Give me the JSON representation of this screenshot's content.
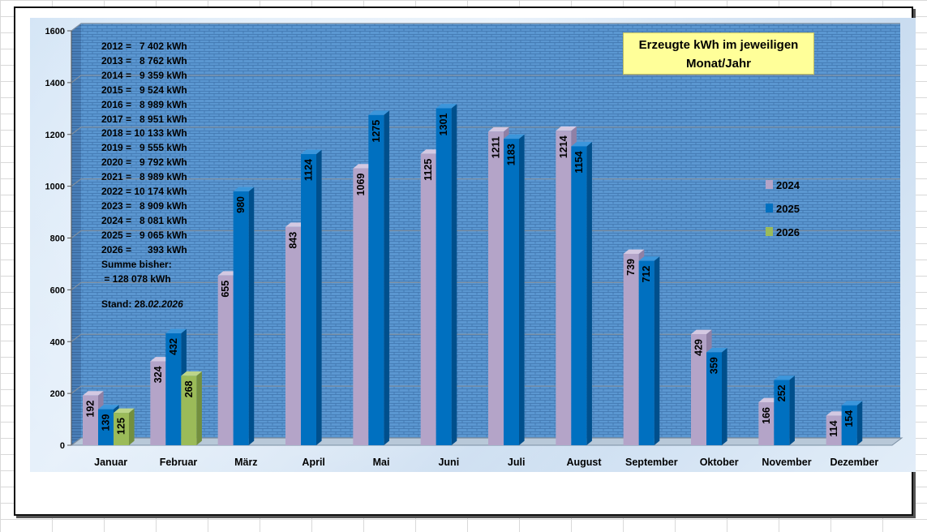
{
  "chart_data": {
    "type": "bar",
    "title_line1": "Erzeugte kWh im jeweiligen",
    "title_line2": "Monat/Jahr",
    "categories": [
      "Januar",
      "Februar",
      "März",
      "April",
      "Mai",
      "Juni",
      "Juli",
      "August",
      "September",
      "Oktober",
      "November",
      "Dezember"
    ],
    "series": [
      {
        "name": "2024",
        "color": "#b4a4c8",
        "side": "#8f80a5",
        "top": "#d4c9e2",
        "values": [
          192,
          324,
          655,
          843,
          1069,
          1125,
          1211,
          1214,
          739,
          429,
          166,
          114
        ],
        "labels": [
          "192",
          "324",
          "655",
          "843",
          "1069",
          "1125",
          "1211",
          "1214",
          "739",
          "429",
          "166",
          "114"
        ]
      },
      {
        "name": "2025",
        "color": "#0070c0",
        "side": "#004f8c",
        "top": "#3c96db",
        "values": [
          139,
          432,
          980,
          1124,
          1275,
          1301,
          1183,
          1154,
          712,
          359,
          252,
          154
        ],
        "labels": [
          "139",
          "432",
          "980",
          "1124",
          "1275",
          "1301",
          "1183",
          "1154",
          "712",
          "359",
          "252",
          "154"
        ]
      },
      {
        "name": "2026",
        "color": "#9bbb59",
        "side": "#738f3e",
        "top": "#bcd58a",
        "values": [
          125,
          268,
          null,
          null,
          null,
          null,
          null,
          null,
          null,
          null,
          null,
          null
        ],
        "labels": [
          "125",
          "268",
          "",
          "",
          "",
          "",
          "",
          "",
          "",
          "",
          "",
          ""
        ]
      }
    ],
    "ylim": [
      0,
      1600
    ],
    "yticks": [
      0,
      200,
      400,
      600,
      800,
      1000,
      1200,
      1400,
      1600
    ],
    "ytick_labels": [
      "0",
      "200",
      "400",
      "600",
      "800",
      "1000",
      "1200",
      "1400",
      "1600"
    ],
    "grid": true,
    "legend_position": "right",
    "xlabel": "",
    "ylabel": ""
  },
  "stats": {
    "rows": [
      "2012 =   7 402 kWh",
      "2013 =   8 762 kWh",
      "2014 =   9 359 kWh",
      "2015 =   9 524 kWh",
      "2016 =   8 989 kWh",
      "2017 =   8 951 kWh",
      "2018 = 10 133 kWh",
      "2019 =   9 555 kWh",
      "2020 =   9 792 kWh",
      "2021 =   8 989 kWh",
      "2022 = 10 174 kWh",
      "2023 =   8 909 kWh",
      "2024 =   8 081 kWh",
      "2025 =   9 065 kWh",
      "2026 =      393 kWh"
    ],
    "sum_label": "Summe bisher:",
    "sum_value": " = 128 078 kWh",
    "stand_label": "Stand: 28.",
    "stand_date": "02.2026"
  }
}
